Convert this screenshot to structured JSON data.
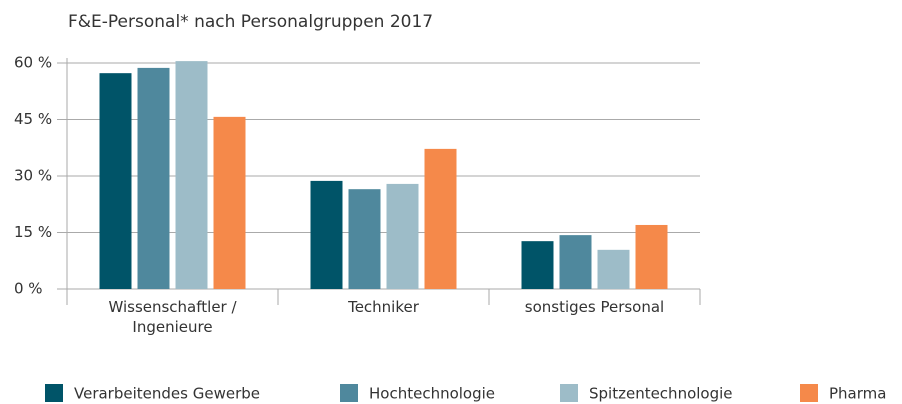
{
  "chart_data": {
    "type": "bar",
    "title": "F&E-Personal* nach Personalgruppen 2017",
    "categories": [
      "Wissenschaftler / Ingenieure",
      "Techniker",
      "sonstiges Personal"
    ],
    "series": [
      {
        "name": "Verarbeitendes Gewerbe",
        "color": "#005468",
        "values": [
          57.3,
          28.7,
          12.7
        ]
      },
      {
        "name": "Hochtechnologie",
        "color": "#4f889d",
        "values": [
          58.7,
          26.5,
          14.3
        ]
      },
      {
        "name": "Spitzentechnologie",
        "color": "#9dbcc8",
        "values": [
          60.5,
          27.9,
          10.4
        ]
      },
      {
        "name": "Pharma",
        "color": "#f5894a",
        "values": [
          45.7,
          37.2,
          17.0
        ]
      }
    ],
    "ylim": [
      0,
      60
    ],
    "yticks": [
      {
        "value": 0,
        "label": "0 %"
      },
      {
        "value": 15,
        "label": "15 %"
      },
      {
        "value": 30,
        "label": "30 %"
      },
      {
        "value": 45,
        "label": "45 %"
      },
      {
        "value": 60,
        "label": "60 %"
      }
    ],
    "grid": true
  }
}
